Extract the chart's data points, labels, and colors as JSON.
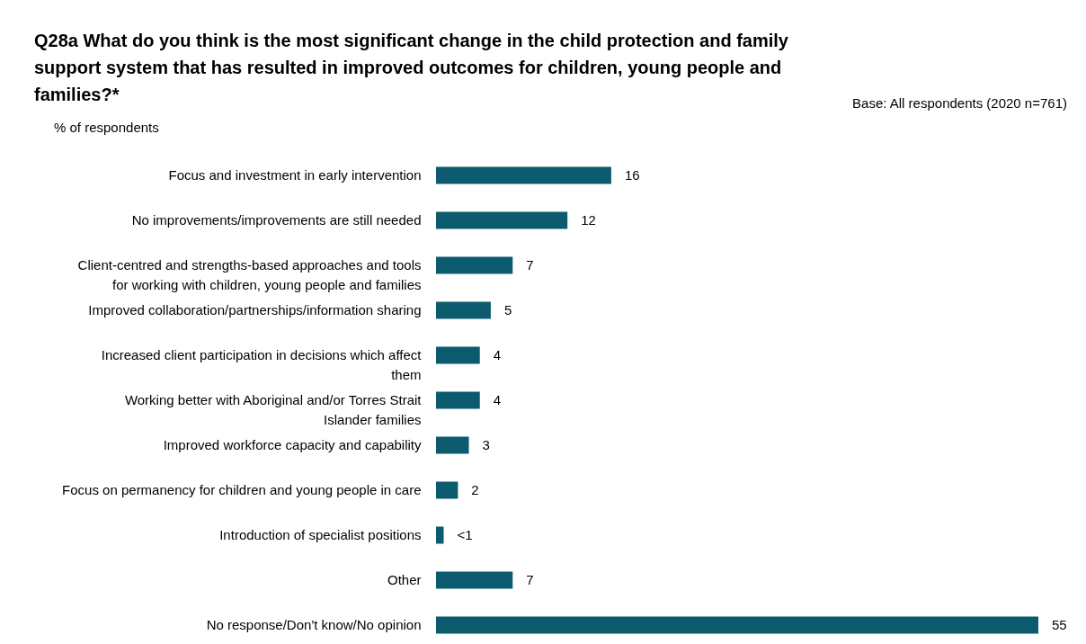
{
  "chart_data": {
    "type": "bar",
    "orientation": "horizontal",
    "title": "Q28a What do you think is the most significant change in the child protection and family\nsupport system that has resulted in improved outcomes for children, young people and\nfamilies?*",
    "annotations": [
      "Base: All respondents (2020 n=761)",
      "% of respondents"
    ],
    "categories": [
      "Focus and investment in early intervention",
      "No improvements/improvements are still needed",
      "Client-centred and strengths-based approaches and tools\nfor working with children, young people and families",
      "Improved collaboration/partnerships/information sharing",
      "Increased client participation in decisions which affect\nthem",
      "Working better with Aboriginal and/or Torres Strait\nIslander families",
      "Improved workforce capacity and capability",
      "Focus on permanency for children and young people in care",
      "Introduction of specialist positions",
      "Other",
      "No response/Don't know/No opinion"
    ],
    "values": [
      16,
      12,
      7,
      5,
      4,
      4,
      3,
      2,
      0.7,
      7,
      55
    ],
    "value_labels": [
      "16",
      "12",
      "7",
      "5",
      "4",
      "4",
      "3",
      "2",
      "<1",
      "7",
      "55"
    ],
    "color": "#0b5a6e"
  }
}
